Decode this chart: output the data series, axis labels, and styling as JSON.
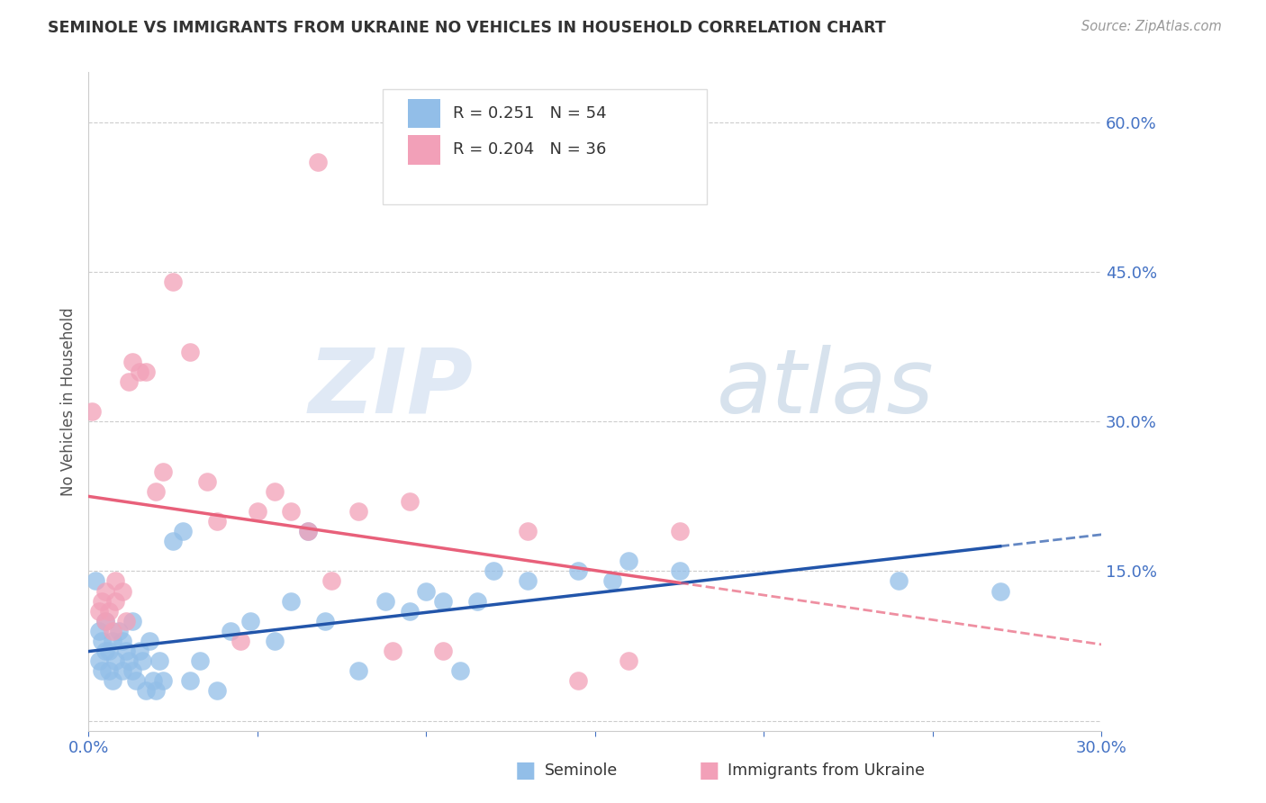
{
  "title": "SEMINOLE VS IMMIGRANTS FROM UKRAINE NO VEHICLES IN HOUSEHOLD CORRELATION CHART",
  "source": "Source: ZipAtlas.com",
  "ylabel": "No Vehicles in Household",
  "xlim": [
    0.0,
    0.3
  ],
  "ylim": [
    -0.01,
    0.65
  ],
  "yticks": [
    0.0,
    0.15,
    0.3,
    0.45,
    0.6
  ],
  "ytick_labels": [
    "",
    "15.0%",
    "30.0%",
    "45.0%",
    "60.0%"
  ],
  "xticks": [
    0.0,
    0.05,
    0.1,
    0.15,
    0.2,
    0.25,
    0.3
  ],
  "xtick_labels": [
    "0.0%",
    "",
    "",
    "",
    "",
    "",
    "30.0%"
  ],
  "legend_blue_label": "Seminole",
  "legend_pink_label": "Immigrants from Ukraine",
  "r_blue": 0.251,
  "n_blue": 54,
  "r_pink": 0.204,
  "n_pink": 36,
  "blue_color": "#92BEE8",
  "pink_color": "#F2A0B8",
  "line_blue_color": "#2255AA",
  "line_pink_color": "#E8607A",
  "axis_color": "#4472C4",
  "grid_color": "#CCCCCC",
  "watermark_zip": "ZIP",
  "watermark_atlas": "atlas",
  "blue_x": [
    0.002,
    0.003,
    0.003,
    0.004,
    0.004,
    0.005,
    0.005,
    0.006,
    0.006,
    0.007,
    0.007,
    0.008,
    0.009,
    0.01,
    0.01,
    0.011,
    0.012,
    0.013,
    0.013,
    0.014,
    0.015,
    0.016,
    0.017,
    0.018,
    0.019,
    0.02,
    0.021,
    0.022,
    0.025,
    0.028,
    0.03,
    0.033,
    0.038,
    0.042,
    0.048,
    0.055,
    0.06,
    0.065,
    0.07,
    0.08,
    0.088,
    0.095,
    0.1,
    0.105,
    0.11,
    0.115,
    0.12,
    0.13,
    0.145,
    0.155,
    0.16,
    0.175,
    0.24,
    0.27
  ],
  "blue_y": [
    0.14,
    0.06,
    0.09,
    0.05,
    0.08,
    0.07,
    0.1,
    0.05,
    0.07,
    0.04,
    0.08,
    0.06,
    0.09,
    0.05,
    0.08,
    0.07,
    0.06,
    0.1,
    0.05,
    0.04,
    0.07,
    0.06,
    0.03,
    0.08,
    0.04,
    0.03,
    0.06,
    0.04,
    0.18,
    0.19,
    0.04,
    0.06,
    0.03,
    0.09,
    0.1,
    0.08,
    0.12,
    0.19,
    0.1,
    0.05,
    0.12,
    0.11,
    0.13,
    0.12,
    0.05,
    0.12,
    0.15,
    0.14,
    0.15,
    0.14,
    0.16,
    0.15,
    0.14,
    0.13
  ],
  "pink_x": [
    0.001,
    0.003,
    0.004,
    0.005,
    0.005,
    0.006,
    0.007,
    0.008,
    0.008,
    0.01,
    0.011,
    0.012,
    0.013,
    0.015,
    0.017,
    0.02,
    0.022,
    0.025,
    0.03,
    0.035,
    0.038,
    0.045,
    0.05,
    0.055,
    0.06,
    0.065,
    0.068,
    0.072,
    0.08,
    0.09,
    0.095,
    0.105,
    0.13,
    0.145,
    0.16,
    0.175
  ],
  "pink_y": [
    0.31,
    0.11,
    0.12,
    0.1,
    0.13,
    0.11,
    0.09,
    0.12,
    0.14,
    0.13,
    0.1,
    0.34,
    0.36,
    0.35,
    0.35,
    0.23,
    0.25,
    0.44,
    0.37,
    0.24,
    0.2,
    0.08,
    0.21,
    0.23,
    0.21,
    0.19,
    0.56,
    0.14,
    0.21,
    0.07,
    0.22,
    0.07,
    0.19,
    0.04,
    0.06,
    0.19
  ],
  "trend_x_start": 0.0,
  "trend_x_end": 0.3
}
